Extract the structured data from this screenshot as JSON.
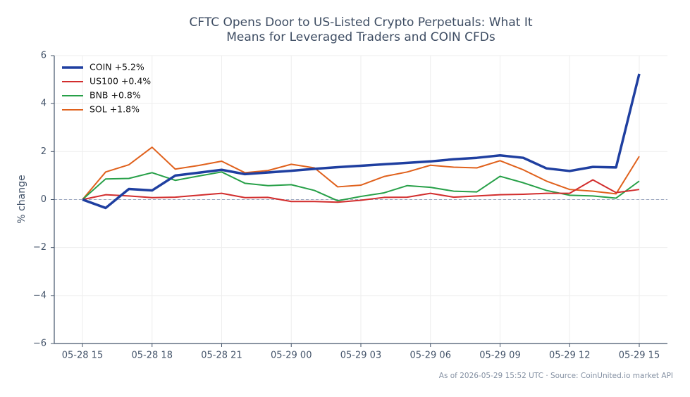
{
  "chart_data": {
    "type": "line",
    "title": [
      "CFTC Opens Door to US-Listed Crypto Perpetuals: What It",
      "Means for Leveraged Traders and COIN CFDs"
    ],
    "y_label": "% change",
    "footer": "As of 2026-05-29 15:52 UTC · Source: CoinUnited.io market API",
    "categories": [
      "05-28 15",
      null,
      null,
      "05-28 18",
      null,
      null,
      "05-28 21",
      null,
      null,
      "05-29 00",
      null,
      null,
      "05-29 03",
      null,
      null,
      "05-29 06",
      null,
      null,
      "05-29 09",
      null,
      null,
      "05-29 12",
      null,
      null,
      "05-29 15"
    ],
    "ylim": [
      -6,
      6
    ],
    "yticks": [
      {
        "value": -6,
        "label": "−6"
      },
      {
        "value": -4,
        "label": "−4"
      },
      {
        "value": -2,
        "label": "−2"
      },
      0,
      2,
      4,
      6
    ],
    "grid": true,
    "legend": "upper left",
    "series": [
      {
        "name": "COIN +5.2%",
        "color": "#1f3fa0",
        "line_width": 3.5,
        "values": [
          0,
          -0.35,
          0.44,
          0.38,
          1.0,
          1.12,
          1.24,
          1.06,
          1.13,
          1.2,
          1.28,
          1.35,
          1.41,
          1.47,
          1.53,
          1.59,
          1.68,
          1.74,
          1.84,
          1.74,
          1.3,
          1.19,
          1.36,
          1.34,
          5.24
        ]
      },
      {
        "name": "US100 +0.4%",
        "color": "#d22d2d",
        "line_width": 2,
        "values": [
          0,
          0.2,
          0.15,
          0.08,
          0.1,
          0.18,
          0.26,
          0.08,
          0.09,
          -0.08,
          -0.08,
          -0.11,
          -0.03,
          0.09,
          0.1,
          0.26,
          0.1,
          0.15,
          0.2,
          0.22,
          0.26,
          0.26,
          0.82,
          0.29,
          0.42
        ]
      },
      {
        "name": "BNB +0.8%",
        "color": "#27a048",
        "line_width": 2,
        "values": [
          0,
          0.86,
          0.88,
          1.12,
          0.8,
          0.98,
          1.15,
          0.68,
          0.58,
          0.62,
          0.38,
          -0.05,
          0.13,
          0.28,
          0.58,
          0.51,
          0.35,
          0.32,
          0.97,
          0.7,
          0.38,
          0.18,
          0.15,
          0.06,
          0.77
        ]
      },
      {
        "name": "SOL +1.8%",
        "color": "#e0611c",
        "line_width": 2,
        "values": [
          0,
          1.15,
          1.45,
          2.18,
          1.27,
          1.42,
          1.6,
          1.12,
          1.21,
          1.47,
          1.32,
          0.53,
          0.6,
          0.96,
          1.15,
          1.43,
          1.35,
          1.32,
          1.62,
          1.24,
          0.77,
          0.42,
          0.35,
          0.24,
          1.8
        ]
      }
    ]
  }
}
